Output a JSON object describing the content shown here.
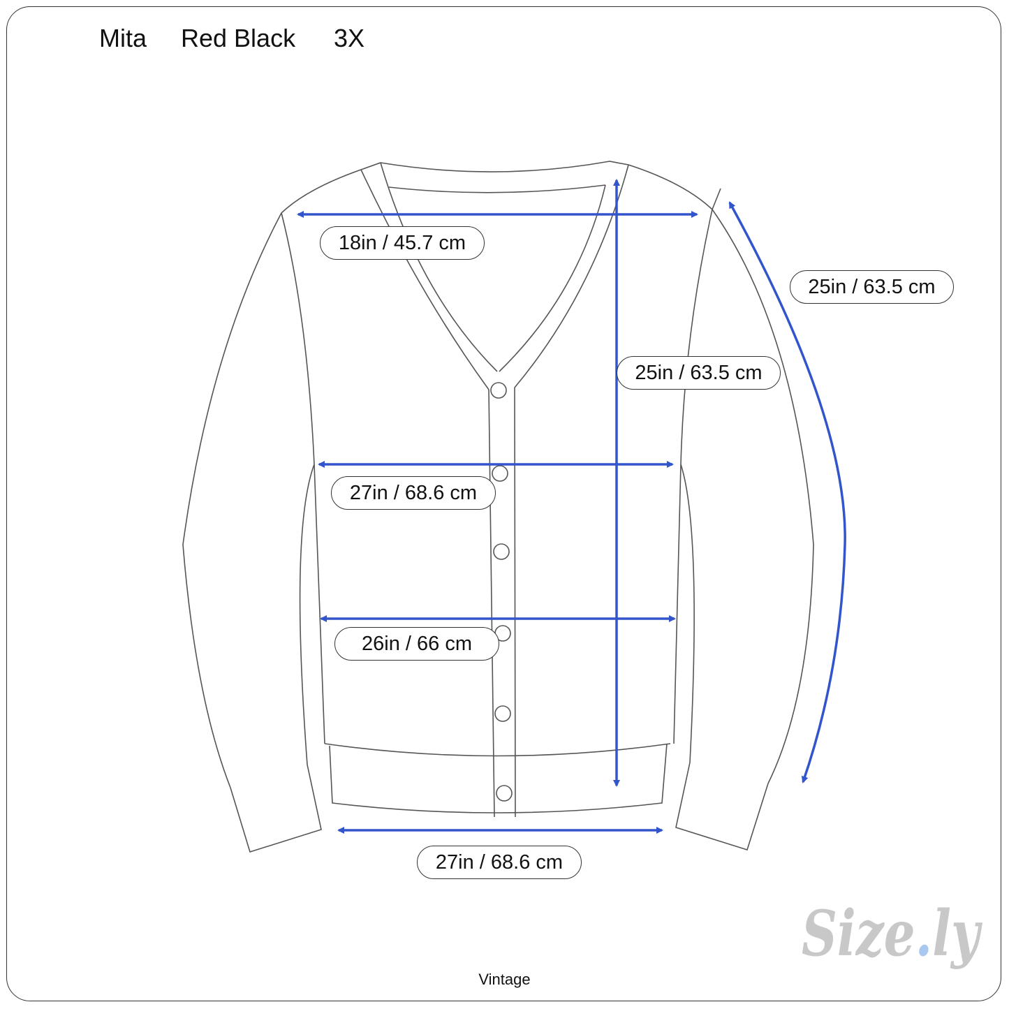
{
  "header": {
    "brand": "Mita",
    "color": "Red Black",
    "size": "3X"
  },
  "measurements": {
    "shoulder": "18in / 45.7 cm",
    "sleeve": "25in / 63.5 cm",
    "length": "25in / 63.5 cm",
    "chest": "27in / 68.6 cm",
    "waist": "26in / 66 cm",
    "hem": "27in / 68.6 cm"
  },
  "footer": "Vintage",
  "logo": {
    "text": "Size.ly",
    "color": "#c8c8c8",
    "dot_color": "#a9c8f0"
  },
  "colors": {
    "arrow": "#3355cc",
    "outline": "#555555"
  }
}
